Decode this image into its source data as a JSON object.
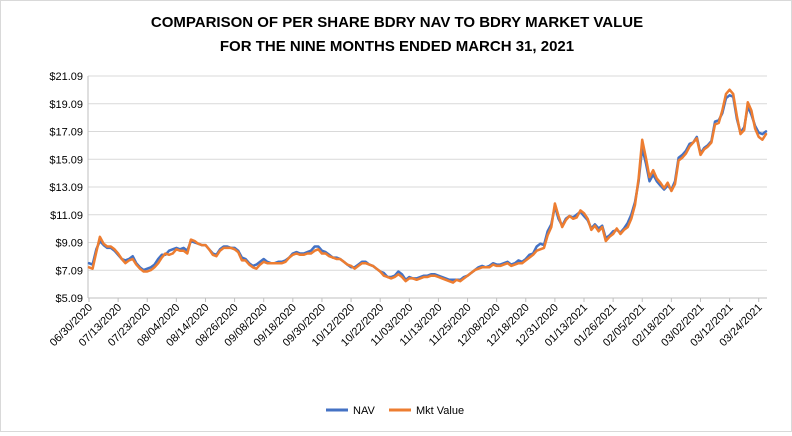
{
  "chart_data": {
    "type": "line",
    "title": [
      "COMPARISON OF PER SHARE BDRY NAV TO BDRY MARKET VALUE",
      "FOR THE NINE MONTHS ENDED MARCH 31, 2021"
    ],
    "xlabel": "",
    "ylabel": "",
    "ylim": [
      5.09,
      21.09
    ],
    "y_ticks": [
      "$5.09",
      "$7.09",
      "$9.09",
      "$11.09",
      "$13.09",
      "$15.09",
      "$17.09",
      "$19.09",
      "$21.09"
    ],
    "y_tick_values": [
      5.09,
      7.09,
      9.09,
      11.09,
      13.09,
      15.09,
      17.09,
      19.09,
      21.09
    ],
    "x_tick_labels": [
      "06/30/2020",
      "07/13/2020",
      "07/23/2020",
      "08/04/2020",
      "08/14/2020",
      "08/26/2020",
      "09/08/2020",
      "09/18/2020",
      "09/30/2020",
      "10/12/2020",
      "10/22/2020",
      "11/03/2020",
      "11/13/2020",
      "11/25/2020",
      "12/08/2020",
      "12/18/2020",
      "12/31/2020",
      "01/13/2021",
      "01/26/2021",
      "02/05/2021",
      "02/18/2021",
      "03/02/2021",
      "03/12/2021",
      "03/24/2021"
    ],
    "x_tick_index": [
      0,
      8,
      16,
      24,
      32,
      40,
      48,
      56,
      64,
      72,
      80,
      88,
      96,
      104,
      112,
      120,
      128,
      136,
      144,
      152,
      160,
      168,
      176,
      184
    ],
    "grid": "horizontal",
    "legend_position": "bottom",
    "series": [
      {
        "name": "NAV",
        "color": "#4472C4",
        "values": [
          7.6,
          7.5,
          8.6,
          9.2,
          8.9,
          8.7,
          8.7,
          8.5,
          8.2,
          7.9,
          7.8,
          7.9,
          8.1,
          7.6,
          7.3,
          7.1,
          7.2,
          7.3,
          7.5,
          7.9,
          8.2,
          8.2,
          8.5,
          8.6,
          8.7,
          8.6,
          8.7,
          8.5,
          9.2,
          9.1,
          9.0,
          8.9,
          8.9,
          8.6,
          8.3,
          8.2,
          8.6,
          8.8,
          8.8,
          8.7,
          8.7,
          8.5,
          8.0,
          7.9,
          7.6,
          7.4,
          7.5,
          7.7,
          7.9,
          7.7,
          7.6,
          7.6,
          7.7,
          7.7,
          7.8,
          8.0,
          8.3,
          8.4,
          8.3,
          8.3,
          8.4,
          8.5,
          8.8,
          8.8,
          8.5,
          8.4,
          8.2,
          8.0,
          8.0,
          7.9,
          7.7,
          7.5,
          7.3,
          7.3,
          7.5,
          7.7,
          7.7,
          7.5,
          7.4,
          7.2,
          7.0,
          6.9,
          6.6,
          6.6,
          6.7,
          7.0,
          6.8,
          6.4,
          6.6,
          6.5,
          6.5,
          6.6,
          6.7,
          6.7,
          6.8,
          6.8,
          6.7,
          6.6,
          6.5,
          6.4,
          6.4,
          6.4,
          6.4,
          6.6,
          6.7,
          6.9,
          7.1,
          7.3,
          7.4,
          7.3,
          7.4,
          7.6,
          7.5,
          7.5,
          7.6,
          7.7,
          7.5,
          7.6,
          7.8,
          7.7,
          7.9,
          8.2,
          8.3,
          8.8,
          9.0,
          8.9,
          9.9,
          10.4,
          11.7,
          10.8,
          10.3,
          10.8,
          11.0,
          10.9,
          11.1,
          11.3,
          11.0,
          10.7,
          10.1,
          10.4,
          10.1,
          10.3,
          9.4,
          9.6,
          9.9,
          10.0,
          9.8,
          10.1,
          10.5,
          11.1,
          12.0,
          13.5,
          15.9,
          14.8,
          13.5,
          14.0,
          13.5,
          13.2,
          12.9,
          13.2,
          12.9,
          13.5,
          15.2,
          15.4,
          15.7,
          16.2,
          16.3,
          16.7,
          15.5,
          15.9,
          16.1,
          16.4,
          17.8,
          17.9,
          18.4,
          19.5,
          19.7,
          19.6,
          18.0,
          17.0,
          17.4,
          18.9,
          18.3,
          17.5,
          17.0,
          16.9,
          17.1
        ]
      },
      {
        "name": "Mkt Value",
        "color": "#ED7D31",
        "values": [
          7.3,
          7.2,
          8.4,
          9.5,
          9.0,
          8.8,
          8.8,
          8.6,
          8.3,
          7.9,
          7.6,
          7.8,
          7.9,
          7.5,
          7.2,
          7.0,
          7.0,
          7.1,
          7.3,
          7.6,
          8.0,
          8.3,
          8.2,
          8.3,
          8.6,
          8.5,
          8.5,
          8.3,
          9.3,
          9.2,
          9.0,
          8.9,
          8.9,
          8.6,
          8.2,
          8.1,
          8.5,
          8.7,
          8.7,
          8.7,
          8.6,
          8.4,
          7.8,
          7.8,
          7.5,
          7.3,
          7.2,
          7.5,
          7.7,
          7.6,
          7.6,
          7.6,
          7.6,
          7.6,
          7.7,
          8.0,
          8.2,
          8.3,
          8.2,
          8.2,
          8.3,
          8.3,
          8.5,
          8.6,
          8.3,
          8.3,
          8.1,
          8.0,
          7.9,
          7.9,
          7.7,
          7.5,
          7.4,
          7.2,
          7.4,
          7.6,
          7.6,
          7.5,
          7.4,
          7.2,
          7.0,
          6.7,
          6.6,
          6.5,
          6.6,
          6.8,
          6.6,
          6.3,
          6.5,
          6.5,
          6.4,
          6.5,
          6.6,
          6.6,
          6.7,
          6.7,
          6.6,
          6.5,
          6.4,
          6.3,
          6.2,
          6.4,
          6.3,
          6.5,
          6.7,
          6.9,
          7.1,
          7.2,
          7.3,
          7.3,
          7.3,
          7.5,
          7.4,
          7.4,
          7.5,
          7.6,
          7.4,
          7.5,
          7.6,
          7.6,
          7.8,
          8.0,
          8.2,
          8.5,
          8.6,
          8.7,
          9.6,
          10.2,
          11.9,
          11.0,
          10.2,
          10.7,
          11.0,
          10.8,
          10.9,
          11.4,
          11.2,
          10.8,
          10.0,
          10.3,
          9.9,
          10.2,
          9.2,
          9.5,
          9.7,
          10.1,
          9.7,
          10.0,
          10.2,
          10.8,
          11.8,
          13.7,
          16.5,
          15.2,
          13.8,
          14.3,
          13.7,
          13.4,
          13.0,
          13.4,
          12.8,
          13.3,
          15.0,
          15.2,
          15.5,
          16.0,
          16.3,
          16.6,
          15.4,
          15.8,
          16.0,
          16.3,
          17.6,
          17.7,
          18.6,
          19.8,
          20.1,
          19.8,
          18.2,
          16.9,
          17.2,
          19.2,
          18.6,
          17.3,
          16.7,
          16.5,
          16.9
        ]
      }
    ]
  }
}
